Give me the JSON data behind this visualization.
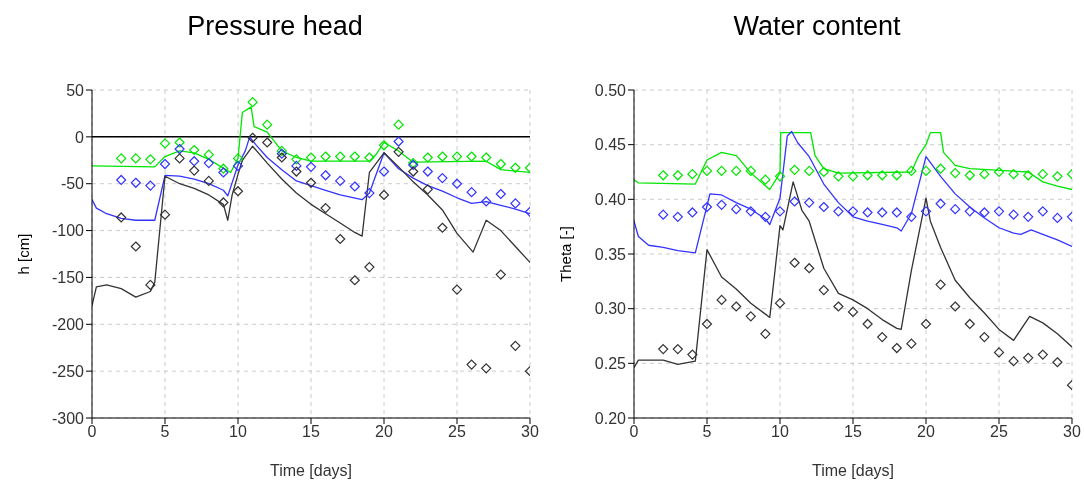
{
  "chart_data": [
    {
      "type": "line",
      "title": "Pressure head",
      "xlabel": "Time [days]",
      "ylabel": "h [cm]",
      "xlim": [
        0,
        30
      ],
      "xticks": [
        0,
        5,
        10,
        15,
        20,
        25,
        30
      ],
      "ylim": [
        -300,
        50
      ],
      "yticks": [
        -300,
        -250,
        -200,
        -150,
        -100,
        -50,
        0,
        50
      ],
      "grid": true,
      "line_style": "solid",
      "ref_lines": [
        {
          "axis": "y",
          "value": 0,
          "color": "#000000"
        }
      ],
      "series": [
        {
          "type": "line",
          "marker": "none",
          "color": "#00e600",
          "x": [
            0,
            4.3,
            5,
            6,
            7,
            8,
            9.5,
            10,
            10.3,
            10.9,
            11.1,
            12,
            13,
            14,
            15,
            19,
            19.5,
            20,
            21,
            22,
            27,
            28,
            30
          ],
          "values": [
            -31,
            -32,
            -21,
            -15,
            -17,
            -24,
            -38,
            -23,
            26,
            32,
            11,
            5,
            -15,
            -22,
            -26,
            -26,
            -18,
            -6,
            -15,
            -27,
            -26,
            -35,
            -38
          ]
        },
        {
          "type": "line",
          "marker": "none",
          "color": "#3333ff",
          "x": [
            0,
            0.3,
            1,
            2,
            3,
            4.3,
            5,
            6,
            7,
            8,
            9,
            9.3,
            10,
            10.5,
            10.8,
            11.2,
            12,
            13,
            14,
            15,
            16,
            17,
            18.5,
            19,
            20,
            21,
            22,
            23,
            24,
            25,
            26,
            27,
            28,
            29,
            30
          ],
          "values": [
            -67,
            -76,
            -82,
            -87,
            -89,
            -89,
            -41,
            -42,
            -45,
            -50,
            -57,
            -63,
            -30,
            -15,
            0,
            -8,
            -22,
            -35,
            -47,
            -52,
            -57,
            -62,
            -67,
            -60,
            -17,
            -34,
            -44,
            -52,
            -58,
            -65,
            -71,
            -69,
            -73,
            -77,
            -82
          ]
        },
        {
          "type": "line",
          "marker": "none",
          "color": "#333333",
          "x": [
            0,
            0.3,
            1,
            2,
            3,
            4,
            4.3,
            5,
            6,
            7,
            8,
            9,
            9.3,
            9.6,
            10,
            10.3,
            11,
            12,
            13,
            14,
            15,
            16,
            17,
            18,
            18.5,
            19,
            20,
            21,
            22,
            23,
            24,
            25,
            26.1,
            27,
            28,
            29,
            30
          ],
          "values": [
            -180,
            -160,
            -158,
            -162,
            -171,
            -165,
            -155,
            -42,
            -50,
            -55,
            -62,
            -72,
            -89,
            -62,
            -40,
            -25,
            -10,
            -28,
            -45,
            -60,
            -72,
            -82,
            -92,
            -102,
            -106,
            -38,
            -17,
            -32,
            -48,
            -62,
            -78,
            -103,
            -123,
            -89,
            -100,
            -117,
            -134
          ]
        },
        {
          "type": "scatter",
          "marker": "diamond",
          "color": "#00e600",
          "x": [
            2,
            3,
            4,
            5,
            6,
            7,
            8,
            9,
            10,
            11,
            12,
            13,
            14,
            15,
            16,
            17,
            18,
            19,
            20,
            21,
            22,
            23,
            24,
            25,
            26,
            27,
            28,
            29,
            30
          ],
          "values": [
            -23,
            -23,
            -24,
            -7,
            -6,
            -14,
            -19,
            -34,
            -23,
            37,
            13,
            -15,
            -24,
            -22,
            -21,
            -21,
            -21,
            -22,
            -9,
            13,
            -28,
            -22,
            -21,
            -21,
            -21,
            -22,
            -29,
            -33,
            -33
          ]
        },
        {
          "type": "scatter",
          "marker": "diamond",
          "color": "#3333ff",
          "x": [
            2,
            3,
            4,
            5,
            6,
            7,
            8,
            9,
            10,
            13,
            14,
            15,
            16,
            17,
            18,
            19,
            20,
            21,
            22,
            23,
            24,
            25,
            26,
            27,
            28,
            29,
            30
          ],
          "values": [
            -46,
            -49,
            -52,
            -29,
            -13,
            -26,
            -28,
            -38,
            -31,
            -18,
            -31,
            -32,
            -41,
            -47,
            -53,
            -60,
            -37,
            -5,
            -30,
            -37,
            -44,
            -50,
            -59,
            -69,
            -61,
            -71,
            -80
          ]
        },
        {
          "type": "scatter",
          "marker": "diamond",
          "color": "#333333",
          "x": [
            2,
            3,
            4,
            5,
            6,
            7,
            8,
            9,
            10,
            11,
            12,
            13,
            14,
            15,
            16,
            17,
            18,
            19,
            20,
            21,
            22,
            23,
            24,
            25,
            26,
            27,
            28,
            29,
            30
          ],
          "values": [
            -86,
            -117,
            -158,
            -83,
            -23,
            -36,
            -47,
            -70,
            -58,
            -1,
            -6,
            -22,
            -37,
            -49,
            -76,
            -109,
            -153,
            -139,
            -62,
            -16,
            -37,
            -56,
            -97,
            -163,
            -243,
            -247,
            -147,
            -223,
            -250
          ]
        }
      ]
    },
    {
      "type": "line",
      "title": "Water content",
      "xlabel": "Time [days]",
      "ylabel": "Theta [-]",
      "xlim": [
        0,
        30
      ],
      "xticks": [
        0,
        5,
        10,
        15,
        20,
        25,
        30
      ],
      "ylim": [
        0.2,
        0.5
      ],
      "yticks": [
        {
          "value": 0.2,
          "label": "0.20"
        },
        {
          "value": 0.25,
          "label": "0.25"
        },
        {
          "value": 0.3,
          "label": "0.30"
        },
        {
          "value": 0.35,
          "label": "0.35"
        },
        {
          "value": 0.4,
          "label": "0.40"
        },
        {
          "value": 0.45,
          "label": "0.45"
        },
        {
          "value": 0.5,
          "label": "0.50"
        }
      ],
      "grid": true,
      "line_style": "solid",
      "series": [
        {
          "type": "line",
          "marker": "none",
          "color": "#00e600",
          "x": [
            0,
            0.3,
            4.2,
            5,
            6,
            7,
            7.2,
            8,
            9.3,
            10,
            10.05,
            12.1,
            12.4,
            13,
            14,
            19,
            19.5,
            20,
            20.3,
            21,
            21.2,
            22,
            23,
            27,
            28,
            29,
            30
          ],
          "values": [
            0.418,
            0.415,
            0.414,
            0.436,
            0.443,
            0.44,
            0.437,
            0.424,
            0.409,
            0.424,
            0.461,
            0.461,
            0.44,
            0.428,
            0.424,
            0.425,
            0.44,
            0.45,
            0.461,
            0.461,
            0.443,
            0.431,
            0.428,
            0.425,
            0.416,
            0.412,
            0.409
          ]
        },
        {
          "type": "line",
          "marker": "none",
          "color": "#3333ff",
          "x": [
            0,
            0.3,
            1,
            2,
            3,
            4.2,
            5.2,
            6,
            7,
            8,
            9,
            9.3,
            10,
            10.5,
            10.8,
            11.2,
            12,
            13,
            14,
            15,
            16,
            17,
            18,
            18.3,
            19,
            20,
            21,
            22,
            23,
            24,
            25,
            26,
            26.5,
            27.2,
            28,
            29,
            30
          ],
          "values": [
            0.38,
            0.366,
            0.358,
            0.356,
            0.353,
            0.351,
            0.405,
            0.404,
            0.397,
            0.391,
            0.382,
            0.377,
            0.401,
            0.458,
            0.462,
            0.452,
            0.439,
            0.414,
            0.397,
            0.384,
            0.38,
            0.377,
            0.374,
            0.371,
            0.387,
            0.439,
            0.421,
            0.405,
            0.393,
            0.383,
            0.374,
            0.369,
            0.368,
            0.372,
            0.368,
            0.363,
            0.357
          ]
        },
        {
          "type": "line",
          "marker": "none",
          "color": "#333333",
          "x": [
            0,
            0.3,
            2,
            3,
            4.2,
            5,
            6,
            7,
            8,
            9,
            9.3,
            10,
            10.2,
            10.9,
            11.5,
            12,
            13,
            14,
            15,
            16,
            17,
            18,
            18.3,
            19,
            20,
            20.3,
            21,
            22,
            23,
            24,
            25,
            26,
            27.1,
            28,
            29,
            30
          ],
          "values": [
            0.246,
            0.253,
            0.253,
            0.249,
            0.252,
            0.354,
            0.329,
            0.318,
            0.305,
            0.295,
            0.292,
            0.376,
            0.372,
            0.416,
            0.39,
            0.38,
            0.337,
            0.314,
            0.308,
            0.3,
            0.29,
            0.282,
            0.281,
            0.335,
            0.401,
            0.38,
            0.356,
            0.326,
            0.31,
            0.296,
            0.281,
            0.271,
            0.293,
            0.287,
            0.277,
            0.265
          ]
        },
        {
          "type": "scatter",
          "marker": "diamond",
          "color": "#00e600",
          "x": [
            2,
            3,
            4,
            5,
            6,
            7,
            8,
            9,
            10,
            11,
            12,
            13,
            14,
            15,
            16,
            17,
            18,
            19,
            20,
            21,
            22,
            23,
            24,
            25,
            26,
            27,
            28,
            29,
            30
          ],
          "values": [
            0.422,
            0.422,
            0.423,
            0.426,
            0.426,
            0.426,
            0.426,
            0.418,
            0.421,
            0.427,
            0.426,
            0.425,
            0.421,
            0.421,
            0.422,
            0.422,
            0.422,
            0.426,
            0.426,
            0.428,
            0.424,
            0.422,
            0.423,
            0.425,
            0.423,
            0.422,
            0.423,
            0.421,
            0.423
          ]
        },
        {
          "type": "scatter",
          "marker": "diamond",
          "color": "#3333ff",
          "x": [
            2,
            3,
            4,
            5,
            6,
            7,
            8,
            9,
            10,
            11,
            12,
            13,
            14,
            15,
            16,
            17,
            18,
            19,
            20,
            21,
            22,
            23,
            24,
            25,
            26,
            27,
            28,
            29,
            30
          ],
          "values": [
            0.386,
            0.384,
            0.388,
            0.393,
            0.395,
            0.391,
            0.389,
            0.384,
            0.389,
            0.398,
            0.397,
            0.393,
            0.389,
            0.389,
            0.388,
            0.388,
            0.388,
            0.384,
            0.389,
            0.396,
            0.391,
            0.389,
            0.388,
            0.389,
            0.386,
            0.384,
            0.389,
            0.383,
            0.384
          ]
        },
        {
          "type": "scatter",
          "marker": "diamond",
          "color": "#333333",
          "x": [
            2,
            3,
            4,
            5,
            6,
            7,
            8,
            9,
            10,
            11,
            12,
            13,
            14,
            15,
            16,
            17,
            18,
            19,
            20,
            21,
            22,
            23,
            24,
            25,
            26,
            27,
            28,
            29,
            30
          ],
          "values": [
            0.263,
            0.263,
            0.258,
            0.286,
            0.308,
            0.302,
            0.293,
            0.277,
            0.305,
            0.342,
            0.337,
            0.317,
            0.302,
            0.297,
            0.286,
            0.274,
            0.264,
            0.268,
            0.286,
            0.322,
            0.302,
            0.286,
            0.274,
            0.26,
            0.252,
            0.255,
            0.258,
            0.251,
            0.23
          ]
        }
      ]
    }
  ]
}
